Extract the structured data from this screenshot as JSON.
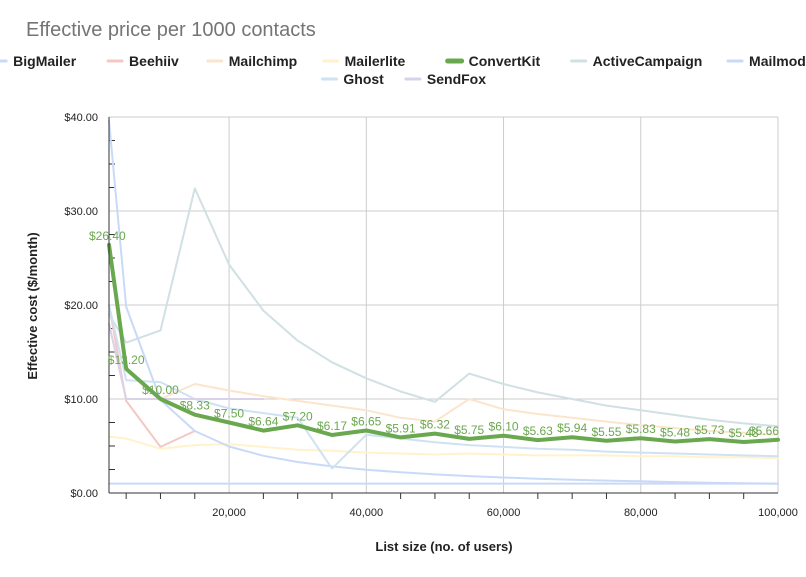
{
  "chart_data": {
    "type": "line",
    "title": "Effective price per 1000 contacts",
    "xlabel": "List size (no. of users)",
    "ylabel": "Effective cost ($/month)",
    "xlim": [
      2500,
      100000
    ],
    "ylim": [
      0,
      40
    ],
    "x_ticks": [
      20000,
      40000,
      60000,
      80000,
      100000
    ],
    "x_tick_labels": [
      "20,000",
      "40,000",
      "60,000",
      "80,000",
      "100,000"
    ],
    "y_ticks": [
      0,
      10,
      20,
      30,
      40
    ],
    "y_tick_labels": [
      "$0.00",
      "$10.00",
      "$20.00",
      "$30.00",
      "$40.00"
    ],
    "legend_position": "top",
    "grid": true,
    "x": [
      2500,
      5000,
      10000,
      15000,
      20000,
      25000,
      30000,
      35000,
      40000,
      45000,
      50000,
      55000,
      60000,
      65000,
      70000,
      75000,
      80000,
      85000,
      90000,
      95000,
      100000
    ],
    "series": [
      {
        "name": "BigMailer",
        "color": "#c9daf8",
        "width": 2,
        "values": [
          1.0,
          1.0,
          1.0,
          1.0,
          1.0,
          1.0,
          1.0,
          1.0,
          1.0,
          1.0,
          1.0,
          1.0,
          1.0,
          1.0,
          1.0,
          1.0,
          1.0,
          1.0,
          1.0,
          1.0,
          1.0
        ]
      },
      {
        "name": "Beehiiv",
        "color": "#f4c7c3",
        "width": 2,
        "values": [
          20.0,
          9.8,
          4.9,
          6.6,
          null,
          null,
          null,
          null,
          null,
          null,
          null,
          null,
          null,
          null,
          null,
          null,
          null,
          null,
          null,
          null,
          null
        ]
      },
      {
        "name": "Mailchimp",
        "color": "#fce5cd",
        "width": 2,
        "values": [
          18.0,
          10.0,
          10.0,
          11.6,
          10.9,
          10.3,
          9.8,
          9.3,
          8.8,
          8.0,
          7.6,
          10.0,
          8.9,
          8.4,
          8.0,
          7.6,
          7.2,
          6.9,
          6.6,
          6.4,
          6.2
        ]
      },
      {
        "name": "Mailerlite",
        "color": "#fff2cc",
        "width": 2,
        "values": [
          6.0,
          5.8,
          4.7,
          5.1,
          5.2,
          4.9,
          4.6,
          4.5,
          4.3,
          4.2,
          4.1,
          4.2,
          4.1,
          4.0,
          4.0,
          4.0,
          3.9,
          3.9,
          3.8,
          3.8,
          3.7
        ]
      },
      {
        "name": "ConvertKit",
        "color": "#6aa84f",
        "width": 4,
        "values": [
          26.4,
          13.2,
          10.0,
          8.33,
          7.5,
          6.64,
          7.2,
          6.17,
          6.65,
          5.91,
          6.32,
          5.75,
          6.1,
          5.63,
          5.94,
          5.55,
          5.83,
          5.48,
          5.73,
          5.43,
          5.66
        ],
        "labels": [
          "$26.40",
          "$13.20",
          "$10.00",
          "$8.33",
          "$7.50",
          "$6.64",
          "$7.20",
          "$6.17",
          "$6.65",
          "$5.91",
          "$6.32",
          "$5.75",
          "$6.10",
          "$5.63",
          "$5.94",
          "$5.55",
          "$5.83",
          "$5.48",
          "$5.73",
          "$5.43",
          "$5.66"
        ]
      },
      {
        "name": "ActiveCampaign",
        "color": "#d0e0e3",
        "width": 2,
        "values": [
          19.0,
          16.0,
          17.3,
          32.4,
          24.3,
          19.4,
          16.2,
          13.9,
          12.2,
          10.8,
          9.7,
          12.7,
          11.6,
          10.7,
          10.0,
          9.3,
          8.8,
          8.3,
          7.8,
          7.4,
          7.1
        ]
      },
      {
        "name": "Mailmodo",
        "color": "#c9daf8",
        "width": 2,
        "values": [
          39.6,
          19.8,
          9.9,
          6.6,
          4.95,
          3.96,
          3.3,
          2.83,
          2.48,
          2.2,
          1.98,
          1.8,
          1.65,
          1.52,
          1.41,
          1.32,
          1.24,
          1.16,
          1.1,
          1.04,
          0.99
        ]
      },
      {
        "name": "Ghost",
        "color": "#cfe2f3",
        "width": 2,
        "values": [
          20.0,
          12.0,
          11.8,
          10.0,
          9.0,
          8.5,
          8.0,
          2.6,
          6.2,
          5.8,
          5.4,
          5.1,
          4.9,
          4.7,
          4.6,
          4.4,
          4.3,
          4.2,
          4.1,
          4.0,
          3.9
        ]
      },
      {
        "name": "SendFox",
        "color": "#d9d2e9",
        "width": 2,
        "values": [
          18.0,
          10.0,
          10.0,
          10.0,
          10.0,
          10.0,
          null,
          null,
          null,
          null,
          null,
          null,
          null,
          null,
          null,
          null,
          null,
          null,
          null,
          null,
          null
        ]
      }
    ]
  }
}
